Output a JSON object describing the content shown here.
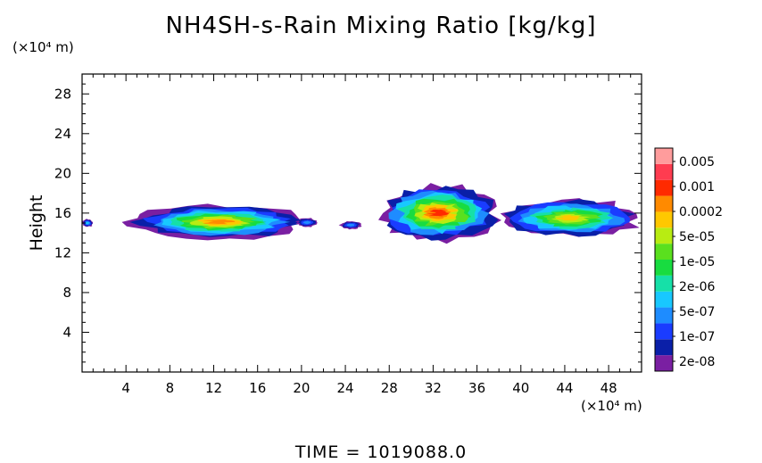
{
  "chart_data": {
    "type": "heatmap",
    "title": "NH4SH-s-Rain Mixing Ratio [kg/kg]",
    "xlabel": "",
    "ylabel": "Height",
    "x_unit": "(×10⁴ m)",
    "y_unit": "(×10⁴ m)",
    "xlim": [
      0,
      51
    ],
    "ylim": [
      0,
      30
    ],
    "x_ticks": [
      "4",
      "8",
      "12",
      "16",
      "20",
      "24",
      "28",
      "32",
      "36",
      "40",
      "44",
      "48"
    ],
    "y_ticks": [
      "4",
      "8",
      "12",
      "16",
      "20",
      "24",
      "28"
    ],
    "colorbar": {
      "labels": [
        "0.005",
        "0.001",
        "0.0002",
        "5e-05",
        "1e-05",
        "2e-06",
        "5e-07",
        "1e-07",
        "2e-08"
      ],
      "colors_bottom_to_top": [
        "#7a1fa2",
        "#0a1fa8",
        "#1a3cff",
        "#1e8cff",
        "#18c8ff",
        "#16e0a8",
        "#18dc40",
        "#5ae01e",
        "#b8ec12",
        "#ffc800",
        "#ff8a00",
        "#ff2a00",
        "#ff3c50",
        "#ff9c9c"
      ]
    },
    "clouds": [
      {
        "x": [
          0,
          1
        ],
        "y_range": [
          14.6,
          15.4
        ],
        "max_level": 4
      },
      {
        "x": [
          4.5,
          20.5
        ],
        "y_range": [
          13.4,
          16.8
        ],
        "max_level": 10
      },
      {
        "x": [
          19.5,
          21.5
        ],
        "y_range": [
          14.6,
          15.5
        ],
        "max_level": 3
      },
      {
        "x": [
          23.5,
          25.5
        ],
        "y_range": [
          14.4,
          15.2
        ],
        "max_level": 3
      },
      {
        "x": [
          27,
          38
        ],
        "y_range": [
          13.2,
          18.8
        ],
        "max_level": 11
      },
      {
        "x": [
          38,
          51
        ],
        "y_range": [
          13.6,
          17.4
        ],
        "max_level": 9
      }
    ]
  },
  "footer": {
    "label": "TIME",
    "value": "1019088.0",
    "text": "TIME = 1019088.0"
  }
}
